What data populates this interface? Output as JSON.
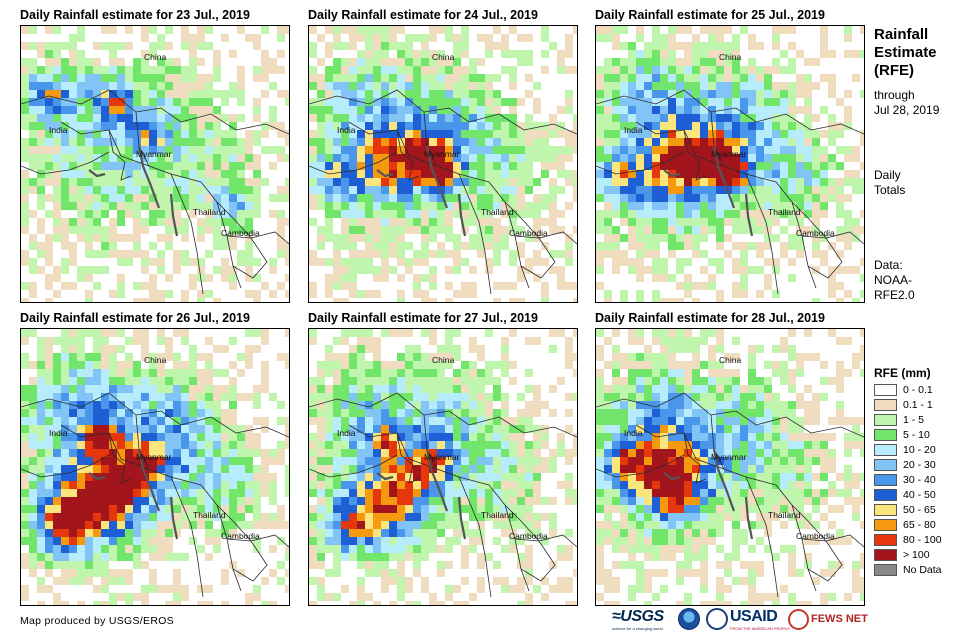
{
  "panels": [
    {
      "title": "Daily Rainfall estimate for 23 Jul., 2019",
      "intensity": 0.55,
      "focus": "north-myanmar"
    },
    {
      "title": "Daily Rainfall estimate for 24 Jul., 2019",
      "intensity": 0.7,
      "focus": "bay-coast"
    },
    {
      "title": "Daily Rainfall estimate for 25 Jul., 2019",
      "intensity": 0.8,
      "focus": "bay-coast"
    },
    {
      "title": "Daily Rainfall estimate for 26 Jul., 2019",
      "intensity": 0.85,
      "focus": "bay-south"
    },
    {
      "title": "Daily Rainfall estimate for 27 Jul., 2019",
      "intensity": 0.65,
      "focus": "bay-south"
    },
    {
      "title": "Daily Rainfall estimate for 28 Jul., 2019",
      "intensity": 0.6,
      "focus": "bay-west"
    }
  ],
  "map_labels": {
    "china": "China",
    "india": "India",
    "myanmar": "Myanmar",
    "thailand": "Thailand",
    "cambodia": "Cambodia"
  },
  "sidebar": {
    "title_line1": "Rainfall",
    "title_line2": "Estimate",
    "title_line3": "(RFE)",
    "through": "through",
    "through_date": "Jul 28, 2019",
    "daily": "Daily",
    "totals": "Totals",
    "data_label": "Data:",
    "data_source1": "NOAA-",
    "data_source2": "RFE2.0"
  },
  "legend": {
    "title": "RFE (mm)",
    "items": [
      {
        "label": "0 - 0.1",
        "color": "#ffffff"
      },
      {
        "label": "0.1 - 1",
        "color": "#f0dcbe"
      },
      {
        "label": "1 - 5",
        "color": "#bff5ad"
      },
      {
        "label": "5 - 10",
        "color": "#71e66a"
      },
      {
        "label": "10 - 20",
        "color": "#b6ecfb"
      },
      {
        "label": "20 - 30",
        "color": "#82c4f5"
      },
      {
        "label": "30 - 40",
        "color": "#4996ea"
      },
      {
        "label": "40 - 50",
        "color": "#1f5fd6"
      },
      {
        "label": "50 - 65",
        "color": "#fbe67e"
      },
      {
        "label": "65 - 80",
        "color": "#f59a0f"
      },
      {
        "label": "80 - 100",
        "color": "#e5360c"
      },
      {
        "label": "> 100",
        "color": "#a3151c"
      },
      {
        "label": "No Data",
        "color": "#8a8a8a"
      }
    ]
  },
  "credit": "Map produced by USGS/EROS",
  "logos": {
    "usgs": "≈USGS",
    "usgs_tag": "science for a changing world",
    "usaid": "USAID",
    "usaid_tag": "FROM THE AMERICAN PEOPLE",
    "fewsnet": "FEWS NET"
  },
  "icons": {
    "usgs_logo": "usgs-logo-icon",
    "noaa_logo": "noaa-logo-icon",
    "seal_logo": "us-seal-icon",
    "usaid_logo": "usaid-logo-icon",
    "fewsnet_logo": "fewsnet-logo-icon"
  }
}
